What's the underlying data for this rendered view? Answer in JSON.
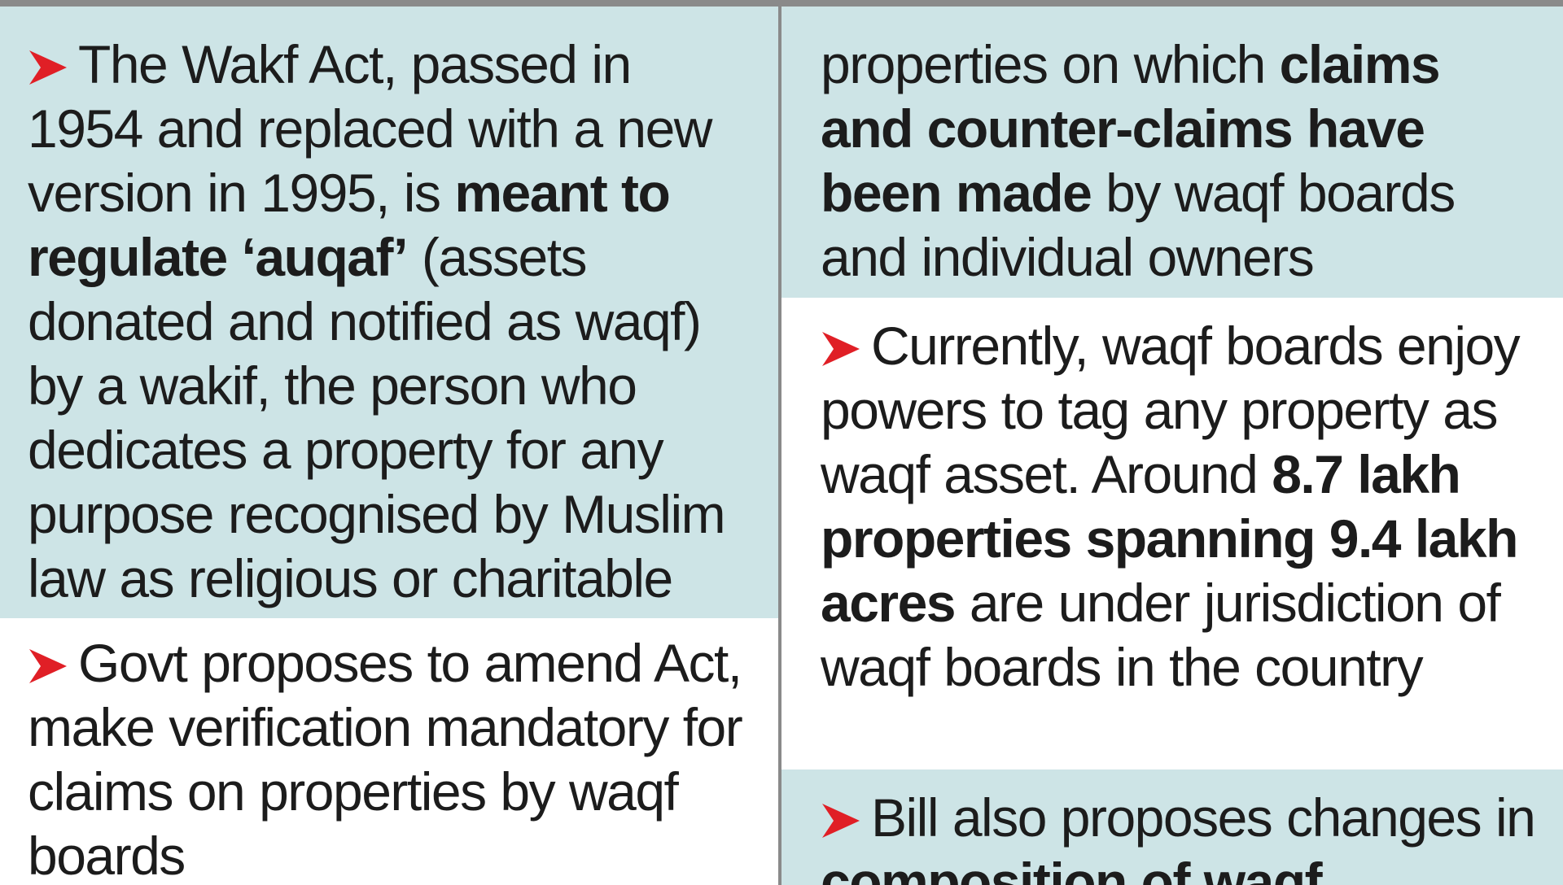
{
  "colors": {
    "tint": "#cde4e6",
    "arrow": "#e01f26",
    "divider": "#8a8a8a",
    "text": "#1c1c1c"
  },
  "icons": {
    "bullet": "red-arrow-bullet-icon"
  },
  "left_column": {
    "block1": {
      "t1": "The Wakf Act, passed in 1954 and replaced with a new version in 1995, is ",
      "b1": "meant to regulate ‘auqaf’",
      "t2": " (assets donated and notified as waqf) by a wakif, the person who dedicates a property for any purpose recognised by Muslim law as religious or charitable"
    },
    "block2": {
      "t1": "Govt proposes to amend Act, make verification mandatory for claims on properties by waqf boards"
    }
  },
  "right_column": {
    "block1": {
      "t1": "properties on which ",
      "b1": "claims and counter-claims have been made",
      "t2": " by waqf boards and individual owners"
    },
    "block2": {
      "t1": "Currently, waqf boards enjoy powers to tag any property as waqf asset. Around ",
      "b1": "8.7 lakh properties spanning 9.4 lakh acres",
      "t2": " are under jurisdiction of waqf boards in the country"
    },
    "block3": {
      "t1": "Bill also proposes changes in ",
      "b1": "composition of waqf"
    }
  }
}
